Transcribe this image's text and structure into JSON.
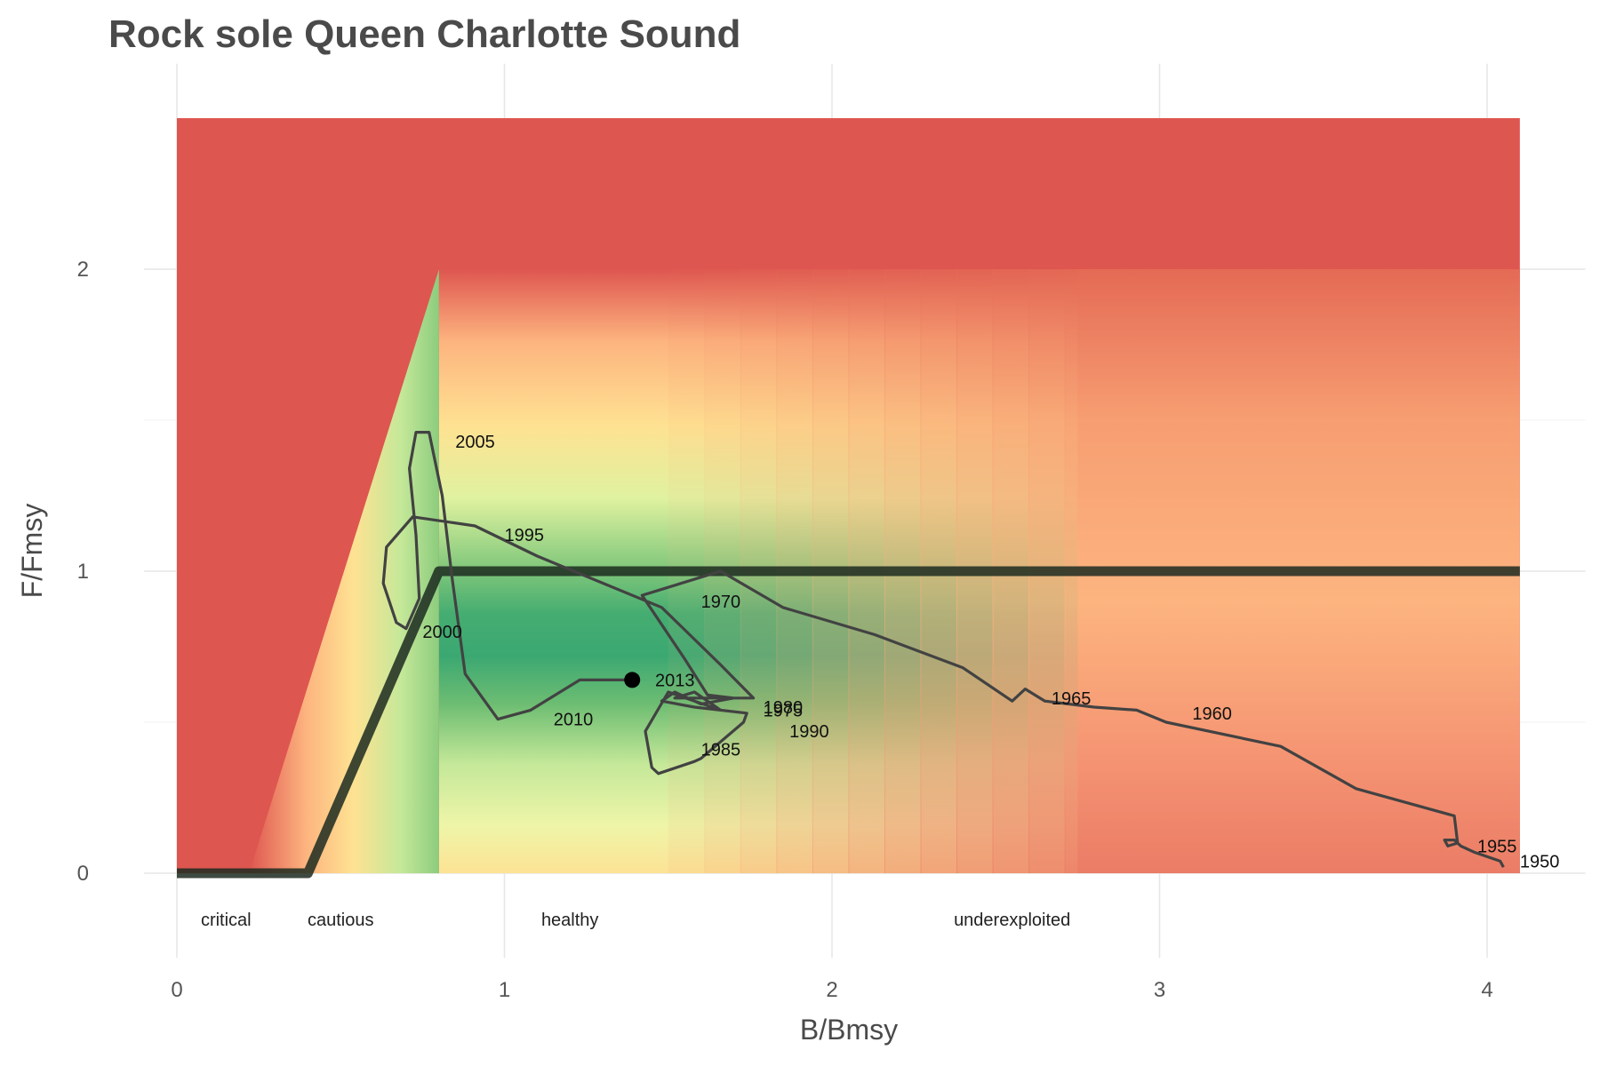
{
  "chart_data": {
    "type": "line",
    "title": "Rock sole Queen Charlotte Sound",
    "xlabel": "B/Bmsy",
    "ylabel": "F/Fmsy",
    "xlim": [
      0,
      4.1
    ],
    "ylim": [
      0,
      2.5
    ],
    "x_ticks": [
      0,
      1,
      2,
      3,
      4
    ],
    "y_ticks": [
      0,
      1,
      2
    ],
    "grid": true,
    "background": "status-zone gradient: red (overfishing / low biomass), yellow, green (healthy near F/Fmsy=1, B/Bmsy~1-1.5), orange-red (underexploited)",
    "reference_line": {
      "points": [
        [
          0,
          0
        ],
        [
          0.4,
          0
        ],
        [
          0.8,
          1
        ],
        [
          4.1,
          1
        ]
      ]
    },
    "zone_labels": [
      {
        "text": "critical",
        "x": 0.15
      },
      {
        "text": "cautious",
        "x": 0.5
      },
      {
        "text": "healthy",
        "x": 1.2
      },
      {
        "text": "underexploited",
        "x": 2.55
      }
    ],
    "trajectory": [
      [
        4.05,
        0.02
      ],
      [
        4.04,
        0.04
      ],
      [
        3.96,
        0.07
      ],
      [
        3.92,
        0.09
      ],
      [
        3.9,
        0.11
      ],
      [
        3.87,
        0.11
      ],
      [
        3.88,
        0.09
      ],
      [
        3.91,
        0.1
      ],
      [
        3.9,
        0.19
      ],
      [
        3.6,
        0.28
      ],
      [
        3.37,
        0.42
      ],
      [
        3.02,
        0.5
      ],
      [
        2.93,
        0.54
      ],
      [
        2.8,
        0.55
      ],
      [
        2.65,
        0.57
      ],
      [
        2.59,
        0.61
      ],
      [
        2.55,
        0.57
      ],
      [
        2.4,
        0.68
      ],
      [
        2.13,
        0.79
      ],
      [
        1.85,
        0.88
      ],
      [
        1.66,
        1.0
      ],
      [
        1.42,
        0.92
      ],
      [
        1.55,
        0.71
      ],
      [
        1.62,
        0.59
      ],
      [
        1.7,
        0.58
      ],
      [
        1.6,
        0.56
      ],
      [
        1.52,
        0.6
      ],
      [
        1.48,
        0.57
      ],
      [
        1.58,
        0.55
      ],
      [
        1.74,
        0.53
      ],
      [
        1.73,
        0.5
      ],
      [
        1.6,
        0.38
      ],
      [
        1.58,
        0.37
      ],
      [
        1.47,
        0.33
      ],
      [
        1.45,
        0.35
      ],
      [
        1.43,
        0.47
      ],
      [
        1.5,
        0.6
      ],
      [
        1.66,
        0.54
      ],
      [
        1.58,
        0.6
      ],
      [
        1.52,
        0.58
      ],
      [
        1.76,
        0.58
      ],
      [
        1.66,
        0.69
      ],
      [
        1.48,
        0.88
      ],
      [
        1.1,
        1.05
      ],
      [
        0.91,
        1.15
      ],
      [
        0.72,
        1.18
      ],
      [
        0.64,
        1.08
      ],
      [
        0.63,
        0.96
      ],
      [
        0.67,
        0.83
      ],
      [
        0.7,
        0.81
      ],
      [
        0.74,
        0.91
      ],
      [
        0.73,
        1.12
      ],
      [
        0.71,
        1.34
      ],
      [
        0.73,
        1.46
      ],
      [
        0.77,
        1.46
      ],
      [
        0.81,
        1.25
      ],
      [
        0.84,
        0.98
      ],
      [
        0.88,
        0.66
      ],
      [
        0.98,
        0.51
      ],
      [
        1.08,
        0.54
      ],
      [
        1.23,
        0.64
      ],
      [
        1.39,
        0.64
      ]
    ],
    "current_point": {
      "x": 1.39,
      "y": 0.64,
      "label": "2013"
    },
    "year_labels": [
      {
        "text": "1950",
        "x": 4.1,
        "y": 0.04
      },
      {
        "text": "1955",
        "x": 3.97,
        "y": 0.09
      },
      {
        "text": "1960",
        "x": 3.1,
        "y": 0.53
      },
      {
        "text": "1965",
        "x": 2.67,
        "y": 0.58
      },
      {
        "text": "1970",
        "x": 1.6,
        "y": 0.9
      },
      {
        "text": "1975",
        "x": 1.79,
        "y": 0.54
      },
      {
        "text": "1980",
        "x": 1.79,
        "y": 0.55
      },
      {
        "text": "1985",
        "x": 1.6,
        "y": 0.41
      },
      {
        "text": "1990",
        "x": 1.87,
        "y": 0.47
      },
      {
        "text": "1995",
        "x": 1.0,
        "y": 1.12
      },
      {
        "text": "2000",
        "x": 0.75,
        "y": 0.8
      },
      {
        "text": "2005",
        "x": 0.85,
        "y": 1.43
      },
      {
        "text": "2010",
        "x": 1.15,
        "y": 0.51
      },
      {
        "text": "2013",
        "x": 1.46,
        "y": 0.64
      }
    ],
    "colors": {
      "red": "#de5650",
      "orange": "#fdb47f",
      "yellow": "#fee292",
      "light_green": "#dff2a0",
      "green": "#3ba872",
      "line": "#424242",
      "reference_line": "#1c2a20"
    }
  }
}
